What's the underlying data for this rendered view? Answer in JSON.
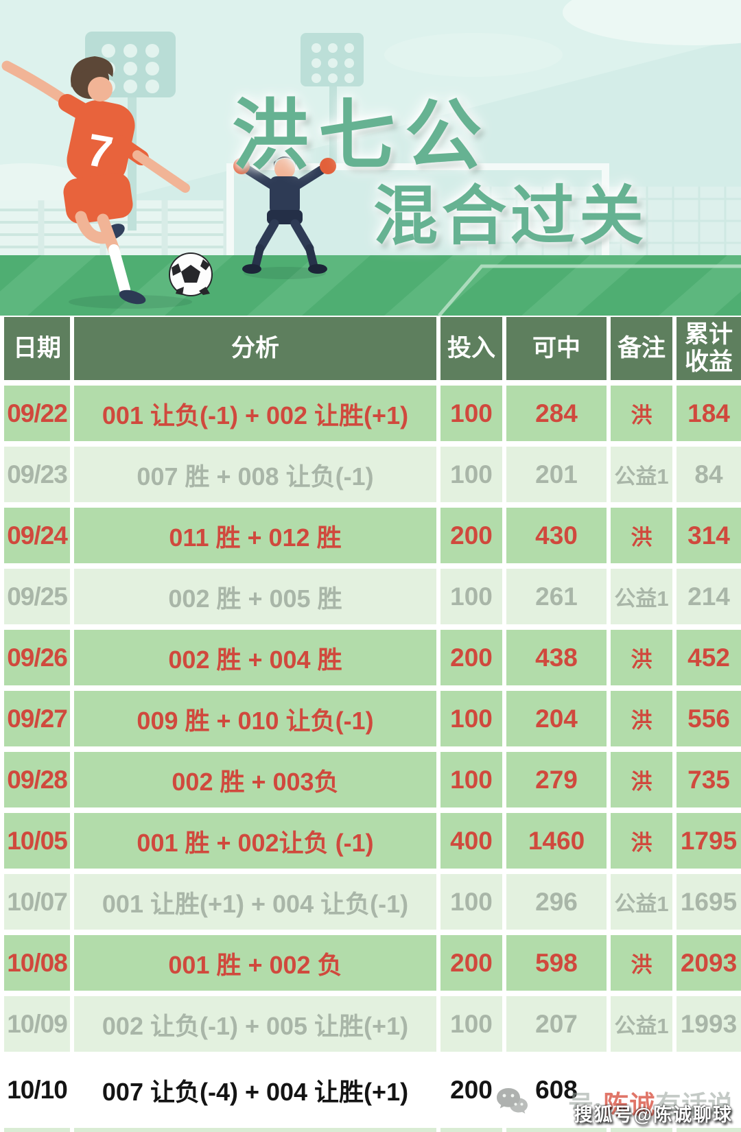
{
  "hero": {
    "title_line1": "洪七公",
    "title_line2": "混合过关",
    "jersey_number": "7",
    "title_color": "#66b292"
  },
  "table": {
    "columns": [
      "日期",
      "分析",
      "投入",
      "可中",
      "备注",
      "累计\n收益"
    ],
    "rows": [
      {
        "date": "09/22",
        "analysis": "001 让负(-1) + 002 让胜(+1)",
        "stake": "100",
        "win": "284",
        "note": "洪",
        "total": "184",
        "status": "hong"
      },
      {
        "date": "09/23",
        "analysis": "007 胜 + 008 让负(-1)",
        "stake": "100",
        "win": "201",
        "note": "公益1",
        "total": "84",
        "status": "gongyi"
      },
      {
        "date": "09/24",
        "analysis": "011 胜 + 012 胜",
        "stake": "200",
        "win": "430",
        "note": "洪",
        "total": "314",
        "status": "hong"
      },
      {
        "date": "09/25",
        "analysis": "002 胜 + 005 胜",
        "stake": "100",
        "win": "261",
        "note": "公益1",
        "total": "214",
        "status": "gongyi"
      },
      {
        "date": "09/26",
        "analysis": "002 胜 + 004 胜",
        "stake": "200",
        "win": "438",
        "note": "洪",
        "total": "452",
        "status": "hong"
      },
      {
        "date": "09/27",
        "analysis": "009 胜 + 010 让负(-1)",
        "stake": "100",
        "win": "204",
        "note": "洪",
        "total": "556",
        "status": "hong"
      },
      {
        "date": "09/28",
        "analysis": "002 胜 + 003负",
        "stake": "100",
        "win": "279",
        "note": "洪",
        "total": "735",
        "status": "hong"
      },
      {
        "date": "10/05",
        "analysis": "001 胜 + 002让负 (-1)",
        "stake": "400",
        "win": "1460",
        "note": "洪",
        "total": "1795",
        "status": "hong"
      },
      {
        "date": "10/07",
        "analysis": "001 让胜(+1) + 004 让负(-1)",
        "stake": "100",
        "win": "296",
        "note": "公益1",
        "total": "1695",
        "status": "gongyi"
      },
      {
        "date": "10/08",
        "analysis": "001 胜 + 002 负",
        "stake": "200",
        "win": "598",
        "note": "洪",
        "total": "2093",
        "status": "hong"
      },
      {
        "date": "10/09",
        "analysis": "002 让负(-1) + 005 让胜(+1)",
        "stake": "100",
        "win": "207",
        "note": "公益1",
        "total": "1993",
        "status": "gongyi"
      },
      {
        "date": "10/10",
        "analysis": "007 让负(-4) + 004 让胜(+1)",
        "stake": "200",
        "win": "608",
        "note": "",
        "total": "",
        "status": "pending"
      }
    ],
    "colors": {
      "header_bg": "#5e7f5e",
      "header_text": "#ffffff",
      "row_hong_bg": "#b2dcaa",
      "row_hong_text": "#d0493d",
      "row_gongyi_bg": "#e3f1df",
      "row_gongyi_text": "#a9b6a8",
      "row_pending_bg": "#ffffff",
      "row_pending_text": "#141414",
      "next_row_bg": "#d9ecd4"
    }
  },
  "watermarks": {
    "wechat_icon": "wechat-icon",
    "line_gray_prefix": "号·",
    "line_red_name": "陈诚",
    "line_gray_suffix": "有话说",
    "sohu": "搜狐号@陈诚聊球"
  }
}
